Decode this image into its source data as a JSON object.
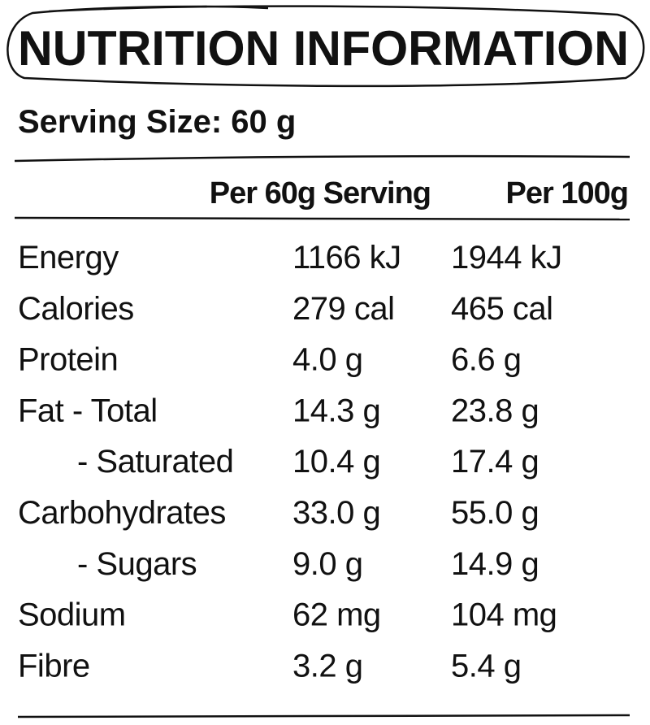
{
  "header": {
    "title": "NUTRITION INFORMATION",
    "serving_size": "Serving Size: 60 g"
  },
  "table": {
    "columns": [
      "Per 60g Serving",
      "Per 100g"
    ],
    "rows": [
      [
        "Energy",
        "1166 kJ",
        "1944 kJ"
      ],
      [
        "Calories",
        "279 cal",
        "465 cal"
      ],
      [
        "Protein",
        "4.0 g",
        "6.6 g"
      ],
      [
        "Fat - Total",
        "14.3 g",
        "23.8 g"
      ],
      [
        "- Saturated",
        "10.4 g",
        "17.4 g"
      ],
      [
        "Carbohydrates",
        "33.0 g",
        "55.0 g"
      ],
      [
        "- Sugars",
        "9.0 g",
        "14.9 g"
      ],
      [
        "Sodium",
        "62 mg",
        "104 mg"
      ],
      [
        "Fibre",
        "3.2 g",
        "5.4 g"
      ]
    ]
  }
}
